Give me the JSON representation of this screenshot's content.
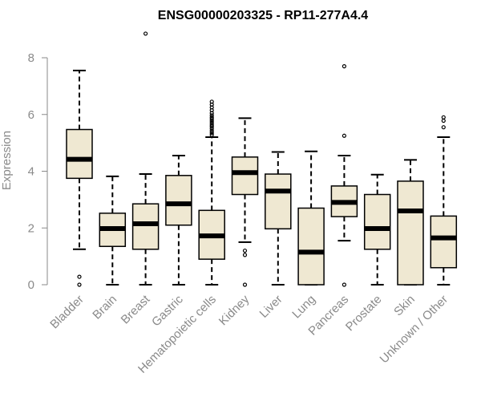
{
  "chart_data": {
    "type": "box",
    "title": "ENSG00000203325 - RP11-277A4.4",
    "xlabel": "",
    "ylabel": "Expression",
    "ylim": [
      0,
      8
    ],
    "yticks": [
      0,
      2,
      4,
      6,
      8
    ],
    "grid": false,
    "box_fill": "#efe8d2",
    "categories": [
      "Bladder",
      "Brain",
      "Breast",
      "Gastric",
      "Hematopoietic cells",
      "Kidney",
      "Liver",
      "Lung",
      "Pancreas",
      "Prostate",
      "Skin",
      "Unknown / Other"
    ],
    "boxes": [
      {
        "category": "Bladder",
        "whisker_low": 1.25,
        "q1": 3.75,
        "median": 4.42,
        "q3": 5.47,
        "whisker_high": 7.55,
        "outliers": [
          0.0,
          0.28
        ]
      },
      {
        "category": "Brain",
        "whisker_low": 0.0,
        "q1": 1.35,
        "median": 1.98,
        "q3": 2.52,
        "whisker_high": 3.82,
        "outliers": []
      },
      {
        "category": "Breast",
        "whisker_low": 0.0,
        "q1": 1.25,
        "median": 2.15,
        "q3": 2.85,
        "whisker_high": 3.9,
        "outliers": [
          8.85
        ]
      },
      {
        "category": "Gastric",
        "whisker_low": 0.0,
        "q1": 2.1,
        "median": 2.85,
        "q3": 3.85,
        "whisker_high": 4.55,
        "outliers": []
      },
      {
        "category": "Hematopoietic cells",
        "whisker_low": 0.0,
        "q1": 0.9,
        "median": 1.72,
        "q3": 2.62,
        "whisker_high": 5.2,
        "outliers": [
          5.28,
          5.35,
          5.42,
          5.5,
          5.57,
          5.63,
          5.7,
          5.77,
          5.84,
          5.9,
          5.97,
          6.05,
          6.15,
          6.25,
          6.35,
          6.45
        ]
      },
      {
        "category": "Kidney",
        "whisker_low": 1.5,
        "q1": 3.18,
        "median": 3.95,
        "q3": 4.5,
        "whisker_high": 5.87,
        "outliers": [
          0.0,
          1.05,
          1.2
        ]
      },
      {
        "category": "Liver",
        "whisker_low": 0.0,
        "q1": 1.97,
        "median": 3.3,
        "q3": 3.9,
        "whisker_high": 4.68,
        "outliers": []
      },
      {
        "category": "Lung",
        "whisker_low": 0.0,
        "q1": 0.0,
        "median": 1.15,
        "q3": 2.7,
        "whisker_high": 4.7,
        "outliers": []
      },
      {
        "category": "Pancreas",
        "whisker_low": 1.55,
        "q1": 2.4,
        "median": 2.9,
        "q3": 3.48,
        "whisker_high": 4.55,
        "outliers": [
          0.0,
          5.25,
          7.7
        ]
      },
      {
        "category": "Prostate",
        "whisker_low": 0.0,
        "q1": 1.25,
        "median": 1.98,
        "q3": 3.18,
        "whisker_high": 3.88,
        "outliers": []
      },
      {
        "category": "Skin",
        "whisker_low": 0.0,
        "q1": 0.0,
        "median": 2.6,
        "q3": 3.65,
        "whisker_high": 4.4,
        "outliers": []
      },
      {
        "category": "Unknown / Other",
        "whisker_low": 0.0,
        "q1": 0.6,
        "median": 1.65,
        "q3": 2.42,
        "whisker_high": 5.2,
        "outliers": [
          5.55,
          5.78,
          5.9
        ]
      }
    ]
  }
}
